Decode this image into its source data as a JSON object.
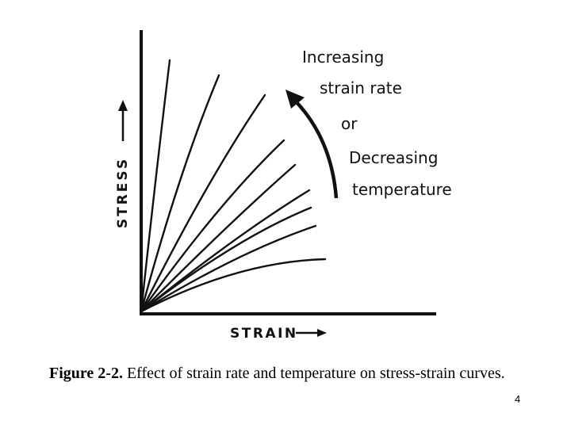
{
  "axes": {
    "x_label": "STRAIN",
    "y_label": "STRESS"
  },
  "annotation": {
    "lines": [
      "Increasing",
      "strain rate",
      "or",
      "Decreasing",
      "temperature"
    ]
  },
  "curves_count": 9,
  "caption": {
    "label": "Figure 2-2.",
    "text": " Effect of strain rate and temperature on stress-strain curves."
  },
  "page_number": "4"
}
